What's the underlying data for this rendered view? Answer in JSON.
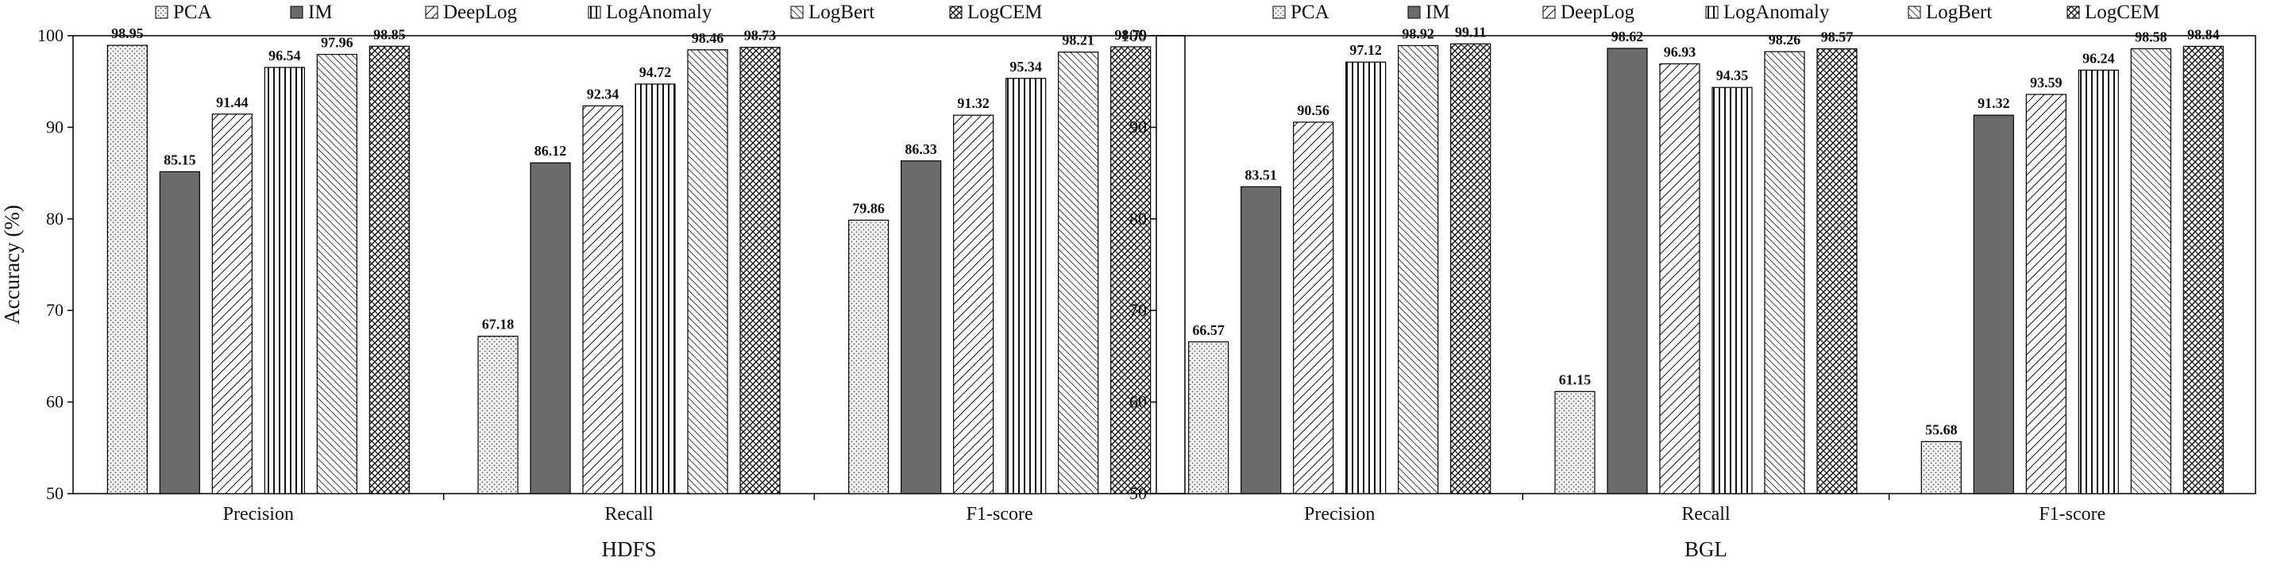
{
  "chart_data": [
    {
      "type": "bar",
      "title": "HDFS",
      "xlabel": "HDFS",
      "ylabel": "Accuracy (%)",
      "ylim": [
        50,
        100
      ],
      "yticks": [
        50,
        60,
        70,
        80,
        90,
        100
      ],
      "categories": [
        "Precision",
        "Recall",
        "F1-score"
      ],
      "series": [
        {
          "name": "PCA",
          "values": [
            98.95,
            67.18,
            79.86
          ]
        },
        {
          "name": "IM",
          "values": [
            85.15,
            86.12,
            86.33
          ]
        },
        {
          "name": "DeepLog",
          "values": [
            91.44,
            92.34,
            91.32
          ]
        },
        {
          "name": "LogAnomaly",
          "values": [
            96.54,
            94.72,
            95.34
          ]
        },
        {
          "name": "LogBert",
          "values": [
            97.96,
            98.46,
            98.21
          ]
        },
        {
          "name": "LogCEM",
          "values": [
            98.85,
            98.73,
            98.79
          ]
        }
      ],
      "legend_position": "top",
      "grid": false
    },
    {
      "type": "bar",
      "title": "BGL",
      "xlabel": "BGL",
      "ylabel": "",
      "ylim": [
        50,
        100
      ],
      "yticks": [
        50,
        60,
        70,
        80,
        90,
        100
      ],
      "categories": [
        "Precision",
        "Recall",
        "F1-score"
      ],
      "series": [
        {
          "name": "PCA",
          "values": [
            66.57,
            61.15,
            55.68
          ]
        },
        {
          "name": "IM",
          "values": [
            83.51,
            98.62,
            91.32
          ]
        },
        {
          "name": "DeepLog",
          "values": [
            90.56,
            96.93,
            93.59
          ]
        },
        {
          "name": "LogAnomaly",
          "values": [
            97.12,
            94.35,
            96.24
          ]
        },
        {
          "name": "LogBert",
          "values": [
            98.92,
            98.26,
            98.58
          ]
        },
        {
          "name": "LogCEM",
          "values": [
            99.11,
            98.57,
            98.84
          ]
        }
      ],
      "legend_position": "top",
      "grid": false
    }
  ],
  "legend": {
    "entries": [
      {
        "name": "PCA",
        "pattern": "dots"
      },
      {
        "name": "IM",
        "pattern": "solid-gray"
      },
      {
        "name": "DeepLog",
        "pattern": "diagonal"
      },
      {
        "name": "LogAnomaly",
        "pattern": "vertical"
      },
      {
        "name": "LogBert",
        "pattern": "diagonal-dense"
      },
      {
        "name": "LogCEM",
        "pattern": "zigzag"
      }
    ]
  },
  "colors": {
    "bar_stroke": "#000000",
    "solid_fill": "#6b6b6b",
    "axis": "#000000"
  }
}
